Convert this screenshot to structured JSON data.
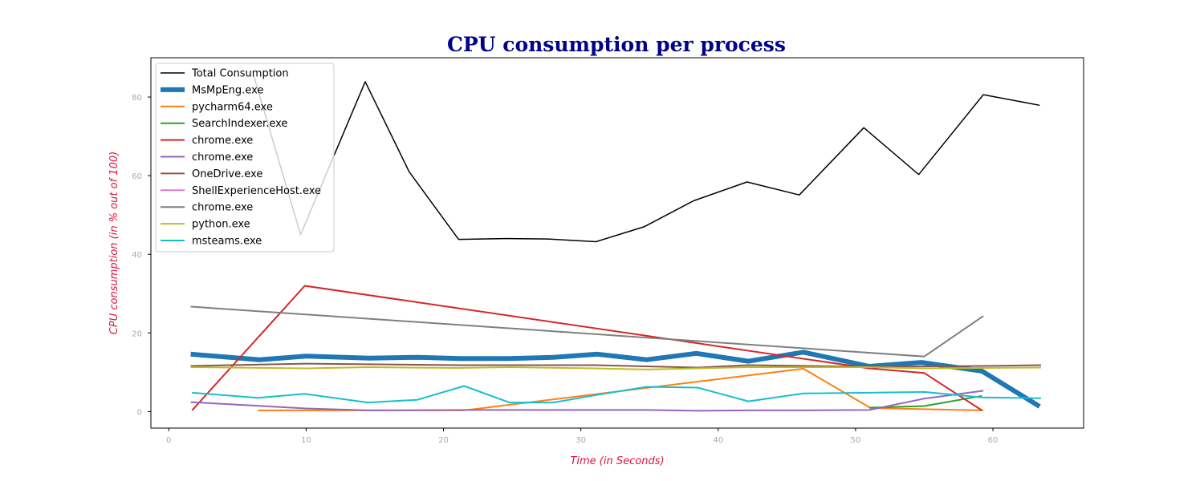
{
  "chart_data": {
    "type": "line",
    "title": "CPU consumption per process",
    "xlabel": "Time (in Seconds)",
    "ylabel": "CPU consumption (in % out of 100)",
    "xlim": [
      -1.3,
      66.6
    ],
    "ylim": [
      -4.2,
      90
    ],
    "xticks": [
      0,
      10,
      20,
      30,
      40,
      50,
      60
    ],
    "yticks": [
      0,
      20,
      40,
      60,
      80
    ],
    "grid": false,
    "legend_position": "upper-left",
    "colors": {
      "title": "#00008b",
      "axis_label": "#dc143c",
      "tick_label": "#a9a9a9"
    },
    "series": [
      {
        "name": "Total Consumption",
        "color": "#000000",
        "width": 1.5,
        "x": [
          6.2,
          9.6,
          14.3,
          17.5,
          21.1,
          24.4,
          27.6,
          31.1,
          34.6,
          38.2,
          42.1,
          45.9,
          50.6,
          54.6,
          59.3,
          63.4
        ],
        "y": [
          85.2,
          45,
          83.9,
          61,
          43.8,
          44,
          43.9,
          43.2,
          47,
          53.6,
          58.4,
          55.1,
          72.2,
          60.3,
          80.6,
          77.9
        ]
      },
      {
        "name": "MsMpEng.exe",
        "color": "#1f77b4",
        "width": 6,
        "x": [
          1.6,
          6.6,
          10,
          14.6,
          18.2,
          21.2,
          24.8,
          28,
          31.2,
          34.8,
          38.4,
          42.2,
          46.2,
          51,
          54.8,
          59.2,
          63.4
        ],
        "y": [
          14.6,
          13.2,
          14.1,
          13.6,
          13.8,
          13.5,
          13.5,
          13.8,
          14.6,
          13.2,
          14.8,
          12.8,
          15.1,
          11.5,
          12.5,
          10.3,
          1.3
        ]
      },
      {
        "name": "pycharm64.exe",
        "color": "#ff7f0e",
        "width": 2,
        "x": [
          6.5,
          21.5,
          46.2,
          51.1,
          59.3
        ],
        "y": [
          0.3,
          0.3,
          10.9,
          0.9,
          0.3
        ]
      },
      {
        "name": "SearchIndexer.exe",
        "color": "#2ca02c",
        "width": 2,
        "x": [
          51,
          55,
          59.2
        ],
        "y": [
          1,
          1.4,
          4
        ]
      },
      {
        "name": "chrome.exe",
        "color": "#d62728",
        "width": 2,
        "x": [
          1.7,
          9.9,
          51,
          55,
          59.2
        ],
        "y": [
          0.3,
          32,
          11,
          9.8,
          0.3
        ]
      },
      {
        "name": "chrome.exe",
        "color": "#9467bd",
        "width": 2,
        "x": [
          1.6,
          10,
          14.5,
          21.5,
          28,
          34.8,
          38.5,
          42.2,
          46.2,
          51,
          55,
          59.3
        ],
        "y": [
          2.4,
          0.8,
          0.3,
          0.4,
          0.4,
          0.4,
          0.2,
          0.3,
          0.3,
          0.4,
          3.3,
          5.3
        ]
      },
      {
        "name": "OneDrive.exe",
        "color": "#8c564b",
        "width": 2,
        "x": [
          1.6,
          10,
          21,
          31,
          38.5,
          42.2,
          51,
          59.2,
          63.5
        ],
        "y": [
          11.6,
          12.2,
          11.8,
          11.8,
          11.2,
          11.8,
          11.4,
          11.6,
          11.8
        ]
      },
      {
        "name": "ShellExperienceHost.exe",
        "color": "#e377c2",
        "width": 2,
        "x": [],
        "y": []
      },
      {
        "name": "chrome.exe",
        "color": "#7f7f7f",
        "width": 2,
        "x": [
          1.6,
          55,
          59.3
        ],
        "y": [
          26.7,
          14,
          24.3
        ]
      },
      {
        "name": "python.exe",
        "color": "#bcbd22",
        "width": 2,
        "x": [
          1.6,
          10,
          14.5,
          21,
          24.8,
          31,
          34.8,
          42.2,
          51,
          55,
          63.5
        ],
        "y": [
          11.3,
          11,
          11.3,
          11.1,
          11.3,
          11,
          10.7,
          11.3,
          11.3,
          11,
          11.2
        ]
      },
      {
        "name": "msteams.exe",
        "color": "#17becf",
        "width": 2,
        "x": [
          1.7,
          6.5,
          9.9,
          14.5,
          18.1,
          21.5,
          24.8,
          28,
          31.1,
          34.8,
          38.5,
          42.2,
          46.2,
          51,
          55,
          59.2,
          63.5
        ],
        "y": [
          4.8,
          3.5,
          4.5,
          2.3,
          3,
          6.5,
          2.3,
          2.3,
          4.2,
          6.3,
          6.1,
          2.6,
          4.6,
          4.8,
          5,
          3.6,
          3.4
        ]
      }
    ]
  }
}
